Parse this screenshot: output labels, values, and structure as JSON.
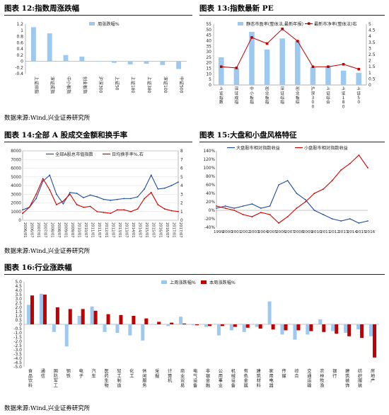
{
  "captions": {
    "c12": "图表 12:指数周涨跌幅",
    "c13": "图表 13:指数最新 PE",
    "c14": "图表 14:全部 A 股成交金额和换手率",
    "c15": "图表 15:大盘和小盘风格特征",
    "c16": "图表 16:行业涨跌幅"
  },
  "sources": {
    "s1": "数据来源:Wind,兴业证券研究所",
    "s2": "数据来源:Wind,兴业证券研究所",
    "s3": "数据来源:Wind,兴业证券研究所"
  },
  "chart_data": [
    {
      "id": "c12",
      "type": "bar",
      "categories": [
        "上证综指",
        "深证成指",
        "中小板指",
        "创业板指",
        "沪深300",
        "上证50",
        "上证180",
        "上证380",
        "深证100",
        "中证500"
      ],
      "series": [
        {
          "name": "周涨跌幅%",
          "color": "#9dc8ef",
          "values": [
            1.1,
            0.9,
            0.2,
            0.15,
            0.0,
            -0.05,
            -0.1,
            -0.08,
            -0.12,
            -0.25
          ]
        }
      ],
      "ylim": [
        -0.4,
        1.2
      ],
      "yticks": [
        -0.4,
        -0.2,
        0,
        0.2,
        0.4,
        0.6,
        0.8,
        1,
        1.2
      ]
    },
    {
      "id": "c13",
      "type": "bar+line",
      "categories": [
        "上证指数",
        "深证成指",
        "中小板指",
        "创业板指",
        "深证综指",
        "创业板综",
        "沪深300",
        "上证综合",
        "上证180",
        "上证50"
      ],
      "series": [
        {
          "name": "静态市盈率(整体法,最新年报)",
          "color": "#9dc8ef",
          "axis": "left",
          "values": [
            25,
            15,
            48,
            32,
            42,
            40,
            16,
            17,
            13,
            11
          ]
        },
        {
          "name": "最新市净率(整体法)右",
          "color": "#c00000",
          "axis": "right",
          "values": [
            1.5,
            1.4,
            3.9,
            3.4,
            4.6,
            3.6,
            1.5,
            1.5,
            1.7,
            1.3
          ]
        }
      ],
      "ylim_left": [
        0,
        55
      ],
      "yticks_left": [
        0,
        5,
        10,
        15,
        20,
        25,
        30,
        35,
        40,
        45,
        50,
        55
      ],
      "ylim_right": [
        0,
        5
      ],
      "yticks_right": [
        0,
        0.5,
        1,
        1.5,
        2,
        2.5,
        3,
        3.5,
        4,
        4.5,
        5
      ]
    },
    {
      "id": "c14",
      "type": "line",
      "x": [
        "2006/01",
        "2006/07",
        "2007/01",
        "2007/07",
        "2008/01",
        "2008/07",
        "2009/01",
        "2009/07",
        "2010/01",
        "2010/07",
        "2011/01",
        "2011/07",
        "2012/01",
        "2012/07",
        "2013/01",
        "2013/07",
        "2014/01",
        "2014/07",
        "2015/01",
        "2015/07",
        "2016/01",
        "2016/07",
        "2017/01",
        "2017/07"
      ],
      "series": [
        {
          "name": "全部A股总市值指数",
          "color": "#1f4e9e",
          "axis": "left",
          "values": [
            1200,
            1500,
            2500,
            4500,
            5200,
            3000,
            1900,
            3200,
            3100,
            2600,
            2900,
            2700,
            2400,
            2300,
            2400,
            2500,
            2500,
            2700,
            3600,
            5200,
            3600,
            3700,
            4000,
            4400
          ]
        },
        {
          "name": "日均换手率%,右",
          "color": "#d40000",
          "axis": "right",
          "values": [
            0.8,
            1.5,
            3.0,
            4.8,
            3.5,
            1.8,
            2.2,
            3.0,
            1.8,
            1.5,
            1.6,
            1.0,
            0.9,
            0.8,
            1.2,
            1.2,
            1.0,
            1.3,
            2.5,
            3.2,
            1.8,
            1.3,
            1.1,
            1.0
          ]
        }
      ],
      "ylim_left": [
        0,
        8000
      ],
      "yticks_left": [
        0,
        1000,
        2000,
        3000,
        4000,
        5000,
        6000,
        7000,
        8000
      ],
      "ylim_right": [
        0,
        8
      ],
      "yticks_right": [
        0,
        1,
        2,
        3,
        4,
        5,
        6,
        7,
        8
      ]
    },
    {
      "id": "c15",
      "type": "line",
      "x": [
        "1999",
        "2000",
        "2001",
        "2002",
        "2003",
        "2004",
        "2005",
        "2006",
        "2007",
        "2008",
        "2009",
        "2010",
        "2011",
        "2012",
        "2013",
        "2014",
        "2015",
        "2016"
      ],
      "series": [
        {
          "name": "大盘股市相对指数收益",
          "color": "#1f4e9e",
          "values": [
            5,
            10,
            5,
            10,
            15,
            5,
            10,
            60,
            70,
            40,
            25,
            0,
            -10,
            -20,
            -25,
            -20,
            -30,
            -25
          ]
        },
        {
          "name": "小盘股市相对指数收益",
          "color": "#d40000",
          "values": [
            10,
            5,
            0,
            -10,
            -15,
            -5,
            -10,
            -30,
            -15,
            5,
            20,
            40,
            50,
            70,
            95,
            110,
            130,
            100
          ]
        }
      ],
      "ylim": [
        -40,
        140
      ],
      "yticks": [
        "-40%",
        "-20%",
        "0%",
        "20%",
        "40%",
        "60%",
        "80%",
        "100%",
        "120%",
        "140%"
      ]
    },
    {
      "id": "c16",
      "type": "bar",
      "categories": [
        "食品饮料",
        "通信",
        "国防军工",
        "钢铁",
        "电子",
        "汽车",
        "医药生物",
        "轻工制造",
        "化工",
        "休闲服务",
        "采掘",
        "计算机",
        "商业贸易",
        "电气设备",
        "非银金融",
        "公用事业",
        "机械设备",
        "有色金属",
        "建筑材料",
        "家用电器",
        "传媒",
        "综合",
        "交通运输",
        "农林牧渔",
        "银行",
        "建筑装饰",
        "纺织服装",
        "房地产"
      ],
      "series": [
        {
          "name": "上周涨跌幅%",
          "color": "#9dc8ef",
          "values": [
            2.3,
            3.6,
            -0.9,
            -2.6,
            1.0,
            2.1,
            -0.9,
            -1.0,
            -1.3,
            -1.9,
            0.0,
            -0.2,
            0.9,
            -0.1,
            -0.3,
            -1.3,
            -0.7,
            -0.9,
            -0.3,
            2.7,
            -1.2,
            -1.8,
            -1.2,
            0.6,
            -0.8,
            -1.0,
            -0.6,
            -1.4
          ]
        },
        {
          "name": "本周涨跌幅%",
          "color": "#c00000",
          "values": [
            3.4,
            3.5,
            2.0,
            1.8,
            1.8,
            1.6,
            1.2,
            1.1,
            1.0,
            0.7,
            0.3,
            0.2,
            0.1,
            -0.1,
            -0.2,
            -0.2,
            -0.3,
            -0.4,
            -0.5,
            -0.6,
            -0.7,
            -0.7,
            -0.8,
            -0.9,
            -1.1,
            -1.4,
            -1.6,
            -3.9
          ]
        }
      ],
      "ylim": [
        -5,
        5
      ],
      "yticks": [
        "-5.0",
        "-4.5",
        "-4.0",
        "-3.5",
        "-3.0",
        "-2.5",
        "-2.0",
        "-1.5",
        "-1.0",
        "-0.5",
        "0",
        "0.5",
        "1.0",
        "1.5",
        "2.0",
        "2.5",
        "3.0",
        "3.5",
        "4.0",
        "4.5",
        "5.0"
      ]
    }
  ]
}
